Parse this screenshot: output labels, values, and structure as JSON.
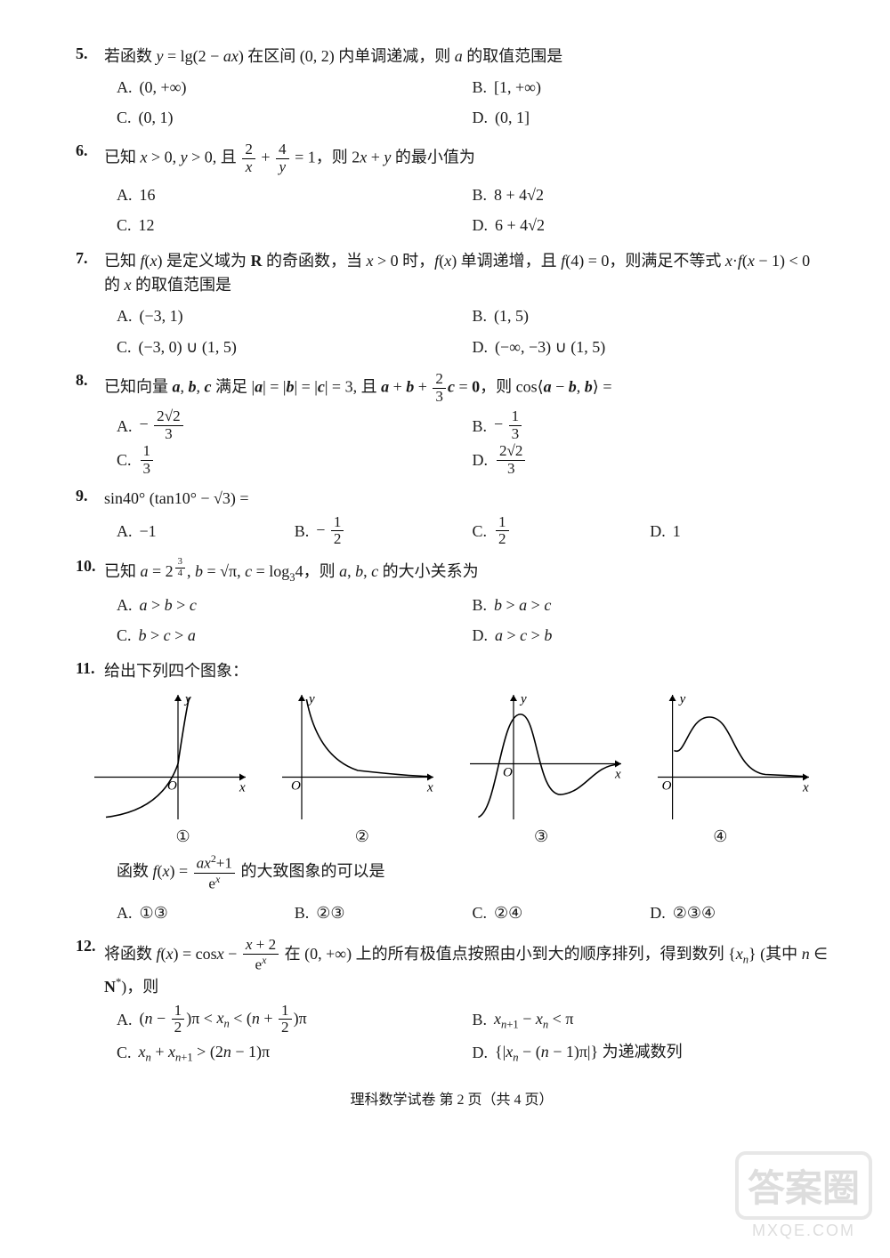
{
  "footer": "理科数学试卷 第 2 页（共 4 页）",
  "watermark_big": "答案圈",
  "watermark_small": "MXQE.COM",
  "questions": [
    {
      "num": "5.",
      "text": "若函数 <span class='it'>y</span> = lg(2 − <span class='it'>ax</span>) 在区间 (0, 2) 内单调递减，则 <span class='it'>a</span> 的取值范围是",
      "layout": "2col-fixed",
      "options": [
        {
          "label": "A.",
          "val": "(0, +∞)"
        },
        {
          "label": "B.",
          "val": "[1, +∞)"
        },
        {
          "label": "C.",
          "val": "(0, 1)"
        },
        {
          "label": "D.",
          "val": "(0, 1]"
        }
      ]
    },
    {
      "num": "6.",
      "text": "已知 <span class='it'>x</span> &gt; 0, <span class='it'>y</span> &gt; 0, 且 <span class='frac'><span class='num'>2</span><span class='den'><span class=\"it\">x</span></span></span> + <span class='frac'><span class='num'>4</span><span class='den'><span class=\"it\">y</span></span></span> = 1，则 2<span class='it'>x</span> + <span class='it'>y</span> 的最小值为",
      "layout": "2col-fixed",
      "options": [
        {
          "label": "A.",
          "val": "16"
        },
        {
          "label": "B.",
          "val": "8 + 4√2"
        },
        {
          "label": "C.",
          "val": "12"
        },
        {
          "label": "D.",
          "val": "6 + 4√2"
        }
      ]
    },
    {
      "num": "7.",
      "text": "已知 <span class='it'>f</span>(<span class='it'>x</span>) 是定义域为 <span class='bold'>R</span> 的奇函数，当 <span class='it'>x</span> &gt; 0 时，<span class='it'>f</span>(<span class='it'>x</span>) 单调递增，且 <span class='it'>f</span>(4) = 0，则满足不等式 <span class='it'>x</span>·<span class='it'>f</span>(<span class='it'>x</span> − 1) &lt; 0 的 <span class='it'>x</span> 的取值范围是",
      "layout": "2col-fixed",
      "options": [
        {
          "label": "A.",
          "val": "(−3, 1)"
        },
        {
          "label": "B.",
          "val": "(1, 5)"
        },
        {
          "label": "C.",
          "val": "(−3, 0) ∪ (1, 5)"
        },
        {
          "label": "D.",
          "val": "(−∞, −3) ∪ (1, 5)"
        }
      ]
    },
    {
      "num": "8.",
      "text": "已知向量 <span class='bold it'>a</span>, <span class='bold it'>b</span>, <span class='bold it'>c</span> 满足 |<span class='bold it'>a</span>| = |<span class='bold it'>b</span>| = |<span class='bold it'>c</span>| = 3, 且 <span class='bold it'>a</span> + <span class='bold it'>b</span> + <span class='frac'><span class='num'>2</span><span class='den'>3</span></span><span class='bold it'>c</span> = <span class='bold'>0</span>，则 cos⟨<span class='bold it'>a</span> − <span class='bold it'>b</span>, <span class='bold it'>b</span>⟩ =",
      "layout": "2col-fixed",
      "options": [
        {
          "label": "A.",
          "val": "− <span class='frac'><span class='num'>2√2</span><span class='den'>3</span></span>"
        },
        {
          "label": "B.",
          "val": "− <span class='frac'><span class='num'>1</span><span class='den'>3</span></span>"
        },
        {
          "label": "C.",
          "val": "<span class='frac'><span class='num'>1</span><span class='den'>3</span></span>"
        },
        {
          "label": "D.",
          "val": "<span class='frac'><span class='num'>2√2</span><span class='den'>3</span></span>"
        }
      ]
    },
    {
      "num": "9.",
      "text": "sin40° (tan10° − √3) =",
      "layout": "4col",
      "options": [
        {
          "label": "A.",
          "val": "−1"
        },
        {
          "label": "B.",
          "val": "− <span class='frac'><span class='num'>1</span><span class='den'>2</span></span>"
        },
        {
          "label": "C.",
          "val": "<span class='frac'><span class='num'>1</span><span class='den'>2</span></span>"
        },
        {
          "label": "D.",
          "val": "1"
        }
      ]
    },
    {
      "num": "10.",
      "text": "已知 <span class='it'>a</span> = 2<sup><span class='frac' style='font-size:0.85em'><span class='num'>3</span><span class='den'>4</span></span></sup>, <span class='it'>b</span> = √π, <span class='it'>c</span> = log<sub>3</sub>4，则 <span class='it'>a</span>, <span class='it'>b</span>, <span class='it'>c</span> 的大小关系为",
      "layout": "2col-fixed",
      "options": [
        {
          "label": "A.",
          "val": "<span class='it'>a</span> &gt; <span class='it'>b</span> &gt; <span class='it'>c</span>"
        },
        {
          "label": "B.",
          "val": "<span class='it'>b</span> &gt; <span class='it'>a</span> &gt; <span class='it'>c</span>"
        },
        {
          "label": "C.",
          "val": "<span class='it'>b</span> &gt; <span class='it'>c</span> &gt; <span class='it'>a</span>"
        },
        {
          "label": "D.",
          "val": "<span class='it'>a</span> &gt; <span class='it'>c</span> &gt; <span class='it'>b</span>"
        }
      ]
    }
  ],
  "q11": {
    "num": "11.",
    "head": "给出下列四个图象：",
    "mid": "函数 <span class='it'>f</span>(<span class='it'>x</span>) = <span class='frac'><span class='num'><span class=\"it\">ax</span><sup>2</sup>+1</span><span class='den'>e<sup><span class=\"it\">x</span></sup></span></span> 的大致图象的可以是",
    "options": [
      {
        "label": "A.",
        "val": "①③"
      },
      {
        "label": "B.",
        "val": "②③"
      },
      {
        "label": "C.",
        "val": "②④"
      },
      {
        "label": "D.",
        "val": "②③④"
      }
    ],
    "graph_labels": [
      "①",
      "②",
      "③",
      "④"
    ],
    "graphs": {
      "width": 180,
      "height": 150,
      "stroke": "#000000",
      "stroke_width": 1.4,
      "axis_label_x": "x",
      "axis_label_y": "y",
      "origin_label": "O"
    }
  },
  "q12": {
    "num": "12.",
    "text": "将函数 <span class='it'>f</span>(<span class='it'>x</span>) = cos<span class='it'>x</span> − <span class='frac'><span class='num'><span class=\"it\">x</span> + 2</span><span class='den'>e<sup><span class=\"it\">x</span></sup></span></span> 在 (0, +∞) 上的所有极值点按照由小到大的顺序排列，得到数列 {<span class='it'>x<sub>n</sub></span>} (其中 <span class='it'>n</span> ∈ <span class='bold'>N</span><sup>*</sup>)，则",
    "options": [
      {
        "label": "A.",
        "val": "(<span class='it'>n</span> − <span class='frac'><span class='num'>1</span><span class='den'>2</span></span>)π &lt; <span class='it'>x<sub>n</sub></span> &lt; (<span class='it'>n</span> + <span class='frac'><span class='num'>1</span><span class='den'>2</span></span>)π"
      },
      {
        "label": "B.",
        "val": "<span class='it'>x</span><sub><span class='it'>n</span>+1</sub> − <span class='it'>x<sub>n</sub></span> &lt; π"
      },
      {
        "label": "C.",
        "val": "<span class='it'>x<sub>n</sub></span> + <span class='it'>x</span><sub><span class='it'>n</span>+1</sub> &gt; (2<span class='it'>n</span> − 1)π"
      },
      {
        "label": "D.",
        "val": "{|<span class='it'>x<sub>n</sub></span> − (<span class='it'>n</span> − 1)π|} 为递减数列"
      }
    ]
  }
}
